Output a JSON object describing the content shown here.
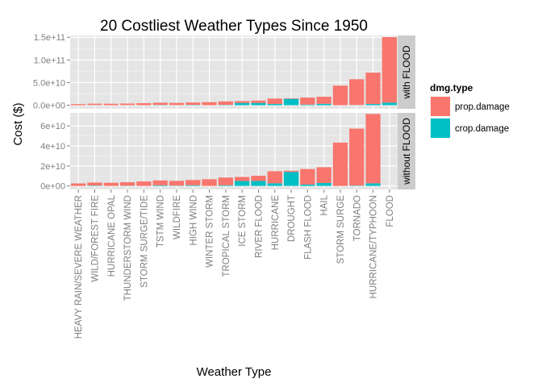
{
  "chart_data": {
    "type": "bar",
    "stacked": true,
    "title": "20 Costliest Weather Types Since 1950",
    "xlabel": "Weather Type",
    "ylabel": "Cost ($)",
    "categories": [
      "HEAVY RAIN/SEVERE WEATHER",
      "WILD/FOREST FIRE",
      "HURRICANE OPAL",
      "THUNDERSTORM WIND",
      "STORM SURGE/TIDE",
      "TSTM WIND",
      "WILDFIRE",
      "HIGH WIND",
      "WINTER STORM",
      "TROPICAL STORM",
      "ICE STORM",
      "RIVER FLOOD",
      "HURRICANE",
      "DROUGHT",
      "FLASH FLOOD",
      "HAIL",
      "STORM SURGE",
      "TORNADO",
      "HURRICANE/TYPHOON",
      "FLOOD"
    ],
    "legend": {
      "title": "dmg.type",
      "position": "right",
      "entries": [
        {
          "label": "prop.damage",
          "color": "#F8766D"
        },
        {
          "label": "crop.damage",
          "color": "#00BFC4"
        }
      ]
    },
    "panels": [
      {
        "strip": "with FLOOD",
        "ylim": [
          -8000000000,
          154000000000
        ],
        "yticks": [
          0,
          50000000000,
          100000000000,
          150000000000
        ],
        "ytick_labels": [
          "0.0e+00",
          "5.0e+10",
          "1.0e+11",
          "1.5e+11"
        ],
        "series": [
          {
            "name": "prop.damage",
            "values": [
              2500000000.0,
              3000000000.0,
              3200000000.0,
              3500000000.0,
              4500000000.0,
              4900000000.0,
              4800000000.0,
              5200000000.0,
              6700000000.0,
              7700000000.0,
              4000000000.0,
              5200000000.0,
              12000000000.0,
              1200000000.0,
              15500000000.0,
              15700000000.0,
              43300000000.0,
              56900000000.0,
              69300000000.0,
              144700000000.0
            ]
          },
          {
            "name": "crop.damage",
            "values": [
              0.0,
              400000000.0,
              0.0,
              200000000.0,
              0.0,
              600000000.0,
              300000000.0,
              700000000.0,
              0.0,
              700000000.0,
              5000000000.0,
              5000000000.0,
              2700000000.0,
              14000000000.0,
              1400000000.0,
              3000000000.0,
              0.0,
              400000000.0,
              2600000000.0,
              5700000000.0
            ]
          }
        ]
      },
      {
        "strip": "without FLOOD",
        "ylim": [
          -3500000000,
          73000000000
        ],
        "yticks": [
          0,
          20000000000,
          40000000000,
          60000000000
        ],
        "ytick_labels": [
          "0e+00",
          "2e+10",
          "4e+10",
          "6e+10"
        ],
        "series": [
          {
            "name": "prop.damage",
            "values": [
              2500000000.0,
              3000000000.0,
              3200000000.0,
              3500000000.0,
              4500000000.0,
              4900000000.0,
              4800000000.0,
              5200000000.0,
              6700000000.0,
              7700000000.0,
              4000000000.0,
              5200000000.0,
              12000000000.0,
              1200000000.0,
              15500000000.0,
              15700000000.0,
              43300000000.0,
              56900000000.0,
              69300000000.0,
              0
            ]
          },
          {
            "name": "crop.damage",
            "values": [
              0.0,
              400000000.0,
              0.0,
              200000000.0,
              0.0,
              600000000.0,
              300000000.0,
              700000000.0,
              0.0,
              700000000.0,
              5000000000.0,
              5000000000.0,
              2700000000.0,
              14000000000.0,
              1400000000.0,
              3000000000.0,
              0.0,
              400000000.0,
              2600000000.0,
              0
            ]
          }
        ]
      }
    ],
    "grid": true,
    "panel_background": "#E5E5E5",
    "strip_background": "#CCCCCC"
  }
}
